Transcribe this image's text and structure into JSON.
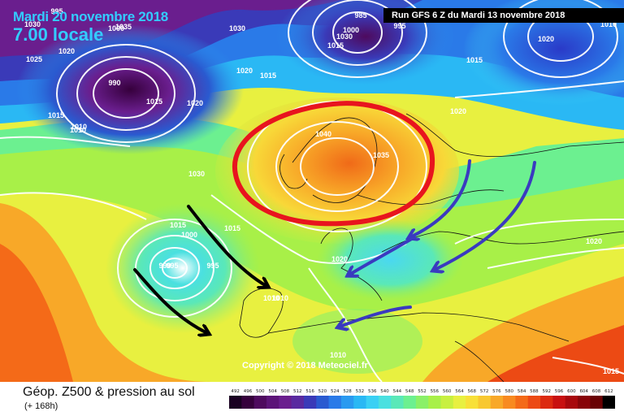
{
  "header": {
    "date": "Mardi 20 novembre 2018",
    "time": "7.00 locale",
    "run": "Run GFS 6 Z du Mardi 13 novembre 2018"
  },
  "footer": {
    "parameter": "Géop. Z500 & pression au sol",
    "lead": "(+ 168h)",
    "copyright": "Copyright © 2018 Meteociel.fr"
  },
  "scale": {
    "values": [
      "492",
      "496",
      "500",
      "504",
      "508",
      "512",
      "516",
      "520",
      "524",
      "528",
      "532",
      "536",
      "540",
      "544",
      "548",
      "552",
      "556",
      "560",
      "564",
      "568",
      "572",
      "576",
      "580",
      "584",
      "588",
      "592",
      "596",
      "600",
      "604",
      "608",
      "612"
    ],
    "colors": [
      "#1a0022",
      "#36003c",
      "#4e0a5e",
      "#5c1478",
      "#6a1e8e",
      "#5a2aa0",
      "#3a3ab8",
      "#2a5ad0",
      "#2a7ae8",
      "#2a9af0",
      "#2ab8f4",
      "#3ad0f4",
      "#4ae0e0",
      "#5ae8b8",
      "#6cf090",
      "#8af068",
      "#a8f048",
      "#c8f040",
      "#e8f040",
      "#f8e038",
      "#f8c830",
      "#f8a828",
      "#f88a20",
      "#f46a18",
      "#ec4a14",
      "#dc2a10",
      "#c81010",
      "#a8080c",
      "#880408",
      "#6a0204",
      "#000000"
    ]
  },
  "pressure_labels": [
    "1030",
    "1020",
    "1025",
    "995",
    "1000",
    "990",
    "1010",
    "1015",
    "1035",
    "1030",
    "1020",
    "1015",
    "985",
    "1000",
    "995",
    "1015",
    "1020",
    "1015",
    "1010",
    "1030",
    "1015",
    "1015",
    "995",
    "1010",
    "1000",
    "1020",
    "1020",
    "1010",
    "1020",
    "1040",
    "1035",
    "1030",
    "1020",
    "1015",
    "990",
    "995",
    "1010",
    "1010",
    "1015"
  ],
  "icons": {
    "high_ring": "red-high-pressure-circle",
    "easterly_arrows": "blue-flow-arrow",
    "westerly_arrows": "black-flow-arrow"
  },
  "colors": {
    "title": "#33ccff",
    "highlight_circle": "#e8141e",
    "blue_arrows": "#3a3ac0",
    "black_arrows": "#000000"
  }
}
